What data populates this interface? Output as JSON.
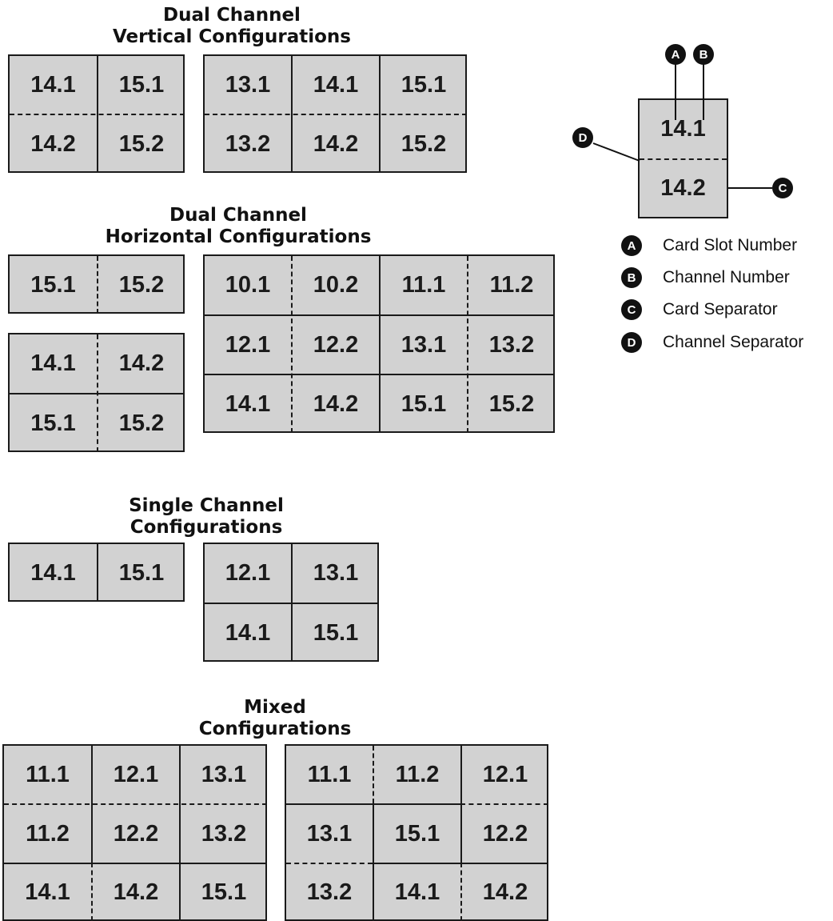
{
  "sections": {
    "dual_vertical": {
      "title_line1": "Dual Channel",
      "title_line2": "Vertical Configurations"
    },
    "dual_horizontal": {
      "title_line1": "Dual Channel",
      "title_line2": "Horizontal Configurations"
    },
    "single": {
      "title_line1": "Single Channel",
      "title_line2": "Configurations"
    },
    "mixed": {
      "title_line1": "Mixed",
      "title_line2": "Configurations"
    }
  },
  "grids": {
    "dv1": [
      [
        "14.1",
        "15.1"
      ],
      [
        "14.2",
        "15.2"
      ]
    ],
    "dv2": [
      [
        "13.1",
        "14.1",
        "15.1"
      ],
      [
        "13.2",
        "14.2",
        "15.2"
      ]
    ],
    "dh1": [
      [
        "15.1",
        "15.2"
      ]
    ],
    "dh2": [
      [
        "14.1",
        "14.2"
      ],
      [
        "15.1",
        "15.2"
      ]
    ],
    "dh3": [
      [
        "10.1",
        "10.2",
        "11.1",
        "11.2"
      ],
      [
        "12.1",
        "12.2",
        "13.1",
        "13.2"
      ],
      [
        "14.1",
        "14.2",
        "15.1",
        "15.2"
      ]
    ],
    "sc1": [
      [
        "14.1",
        "15.1"
      ]
    ],
    "sc2": [
      [
        "12.1",
        "13.1"
      ],
      [
        "14.1",
        "15.1"
      ]
    ],
    "mx1": [
      [
        "11.1",
        "12.1",
        "13.1"
      ],
      [
        "11.2",
        "12.2",
        "13.2"
      ],
      [
        "14.1",
        "14.2",
        "15.1"
      ]
    ],
    "mx2": [
      [
        "11.1",
        "11.2",
        "12.1"
      ],
      [
        "13.1",
        "15.1",
        "12.2"
      ],
      [
        "13.2",
        "14.1",
        "14.2"
      ]
    ]
  },
  "key_example": {
    "top": "14.1",
    "bottom": "14.2"
  },
  "legend": [
    {
      "letter": "A",
      "label": "Card Slot Number"
    },
    {
      "letter": "B",
      "label": "Channel Number"
    },
    {
      "letter": "C",
      "label": "Card Separator"
    },
    {
      "letter": "D",
      "label": "Channel Separator"
    }
  ],
  "callout_letters": {
    "a": "A",
    "b": "B",
    "c": "C",
    "d": "D"
  }
}
